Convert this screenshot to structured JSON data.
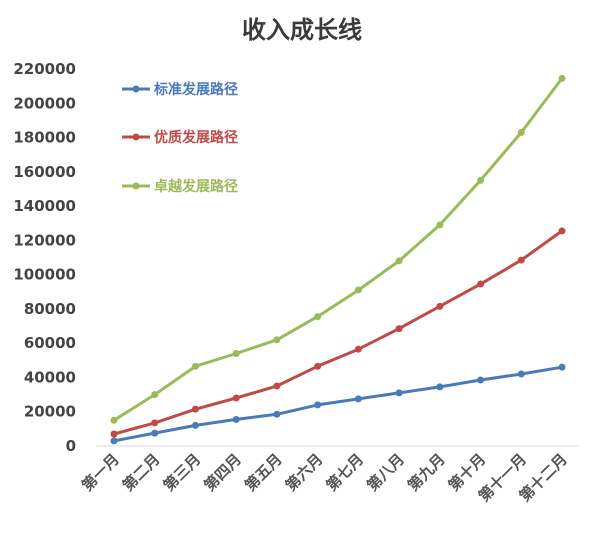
{
  "chart_data": {
    "type": "line",
    "title": "收入成长线",
    "categories": [
      "第一月",
      "第二月",
      "第三月",
      "第四月",
      "第五月",
      "第六月",
      "第七月",
      "第八月",
      "第九月",
      "第十月",
      "第十一月",
      "第十二月"
    ],
    "ylim": [
      0,
      220000
    ],
    "yticks": [
      0,
      20000,
      40000,
      60000,
      80000,
      100000,
      120000,
      140000,
      160000,
      180000,
      200000,
      220000
    ],
    "grid": false,
    "legend_position": "top-left",
    "series": [
      {
        "name": "标准发展路径",
        "color": "#4a7ab8",
        "values": [
          3000,
          7500,
          12000,
          15500,
          18500,
          24000,
          27500,
          31000,
          34500,
          38500,
          42000,
          46000
        ]
      },
      {
        "name": "优质发展路径",
        "color": "#bf4a48",
        "values": [
          7000,
          13500,
          21500,
          28000,
          35000,
          46500,
          56500,
          68500,
          81500,
          94500,
          108500,
          125500
        ]
      },
      {
        "name": "卓越发展路径",
        "color": "#9bbb59",
        "values": [
          15000,
          30000,
          46500,
          54000,
          62000,
          75500,
          91000,
          108000,
          129000,
          155000,
          183000,
          214500
        ]
      }
    ]
  }
}
